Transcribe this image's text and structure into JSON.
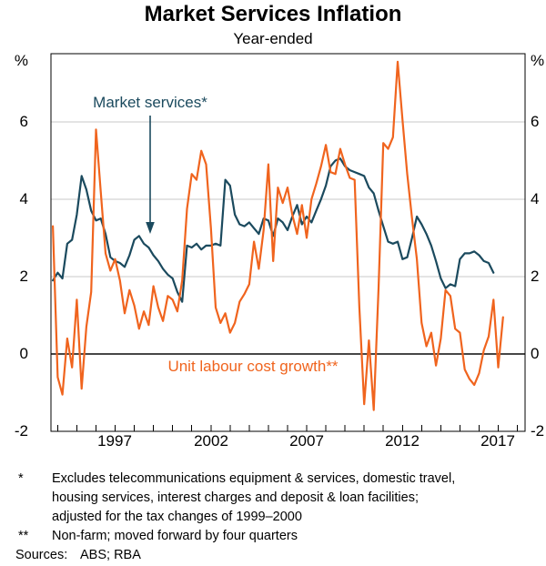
{
  "title": "Market Services Inflation",
  "subtitle": "Year-ended",
  "y_axis": {
    "unit": "%",
    "ticks": [
      "-2",
      "0",
      "2",
      "4",
      "6"
    ]
  },
  "x_axis": {
    "labels": [
      "1997",
      "2002",
      "2007",
      "2012",
      "2017"
    ]
  },
  "annotations": {
    "market_services": {
      "text": "Market services*"
    },
    "unit_labour_cost": {
      "text": "Unit labour cost growth**"
    }
  },
  "footnotes": [
    {
      "marker": "*",
      "text": "Excludes telecommunications equipment & services, domestic travel,\nhousing services, interest charges and deposit & loan facilities;\nadjusted for the tax changes of 1999–2000"
    },
    {
      "marker": "**",
      "text": "Non-farm; moved forward by four quarters"
    }
  ],
  "sources": {
    "label": "Sources:",
    "text": "ABS; RBA"
  },
  "colors": {
    "market_services": "#1b4a5e",
    "unit_labour_cost": "#f0641e",
    "gridline": "#c9c9c9",
    "zero_line": "#464646",
    "frame": "#000000"
  },
  "chart_data": {
    "type": "line",
    "title": "Market Services Inflation",
    "subtitle": "Year-ended",
    "ylabel": "%",
    "ylim": [
      -2,
      7.76
    ],
    "xlim": [
      1993.65,
      2018.4
    ],
    "y_ticks": [
      -2,
      0,
      2,
      4,
      6
    ],
    "gridline_ticks": [
      2,
      4,
      6
    ],
    "zero_line": 0,
    "x_tick_labels": [
      1997,
      2002,
      2007,
      2012,
      2017
    ],
    "x_minor_tick_interval_years": 1,
    "x_minor_tick_start": 1994,
    "x_minor_tick_end": 2018,
    "frequency": "quarterly",
    "legend_position": "annotated-inline",
    "grid": "horizontal-only",
    "series": [
      {
        "name": "Market services*",
        "color": "#1b4a5e",
        "start_year": 1993.75,
        "step_years": 0.25,
        "values": [
          1.9,
          2.1,
          1.95,
          2.85,
          2.95,
          3.6,
          4.6,
          4.25,
          3.7,
          3.45,
          3.5,
          3.1,
          2.5,
          2.4,
          2.35,
          2.25,
          2.55,
          2.95,
          3.05,
          2.85,
          2.75,
          2.55,
          2.4,
          2.2,
          2.05,
          1.95,
          1.6,
          1.35,
          2.8,
          2.75,
          2.85,
          2.7,
          2.8,
          2.8,
          2.85,
          2.8,
          4.5,
          4.35,
          3.6,
          3.35,
          3.3,
          3.4,
          3.25,
          3.1,
          3.5,
          3.45,
          3.05,
          3.5,
          3.4,
          3.2,
          3.55,
          3.85,
          3.35,
          3.55,
          3.4,
          3.7,
          4.0,
          4.35,
          4.85,
          5.0,
          5.05,
          4.85,
          4.75,
          4.7,
          4.65,
          4.6,
          4.3,
          4.15,
          3.7,
          3.3,
          2.9,
          2.85,
          2.9,
          2.45,
          2.5,
          3.0,
          3.55,
          3.35,
          3.1,
          2.8,
          2.4,
          1.95,
          1.7,
          1.8,
          1.75,
          2.45,
          2.6,
          2.6,
          2.65,
          2.55,
          2.4,
          2.35,
          2.1
        ]
      },
      {
        "name": "Unit labour cost growth**",
        "color": "#f0641e",
        "start_year": 1993.75,
        "step_years": 0.25,
        "values": [
          3.3,
          -0.6,
          -1.05,
          0.4,
          -0.35,
          1.4,
          -0.9,
          0.7,
          1.6,
          5.8,
          4.2,
          2.6,
          2.15,
          2.45,
          1.9,
          1.05,
          1.65,
          1.25,
          0.65,
          1.1,
          0.75,
          1.75,
          1.2,
          0.85,
          1.5,
          1.4,
          1.1,
          1.9,
          3.75,
          4.65,
          4.5,
          5.25,
          4.9,
          3.25,
          1.2,
          0.8,
          1.05,
          0.55,
          0.8,
          1.35,
          1.55,
          1.8,
          2.9,
          2.2,
          3.2,
          4.9,
          2.4,
          4.3,
          3.9,
          4.3,
          3.6,
          3.1,
          3.85,
          3.0,
          4.0,
          4.4,
          4.85,
          5.4,
          4.7,
          4.65,
          5.3,
          4.9,
          4.55,
          4.5,
          1.2,
          -1.3,
          0.35,
          -1.45,
          1.7,
          5.45,
          5.3,
          5.6,
          7.55,
          6.05,
          4.65,
          3.5,
          2.45,
          0.8,
          0.2,
          0.55,
          -0.3,
          0.4,
          1.65,
          1.5,
          0.65,
          0.55,
          -0.4,
          -0.65,
          -0.8,
          -0.5,
          0.1,
          0.45,
          1.4,
          -0.35,
          0.95
        ]
      }
    ],
    "annotations": [
      {
        "text": "Market services*",
        "series": "Market services*",
        "arrow": true
      },
      {
        "text": "Unit labour cost growth**",
        "series": "Unit labour cost growth**",
        "arrow": false
      }
    ]
  }
}
